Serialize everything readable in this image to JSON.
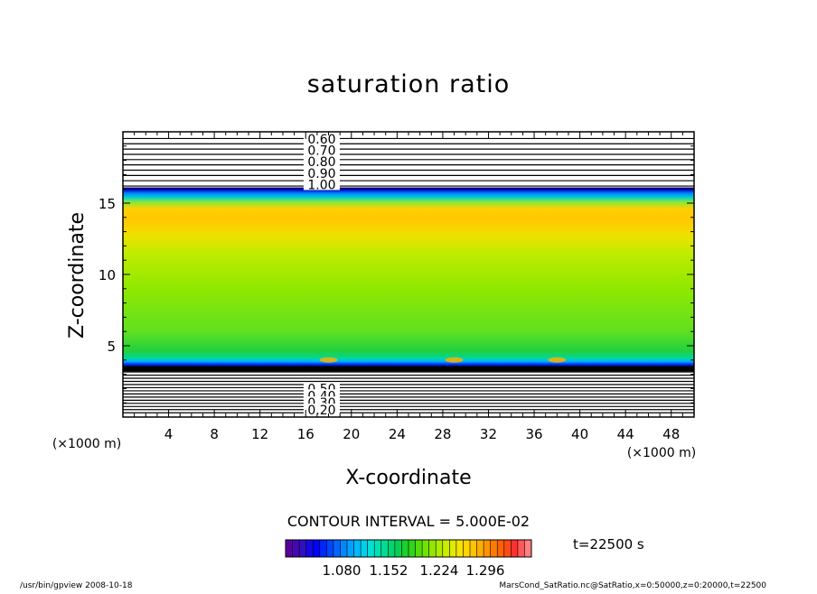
{
  "chart_data": {
    "type": "heatmap",
    "title": "saturation ratio",
    "xlabel": "X-coordinate",
    "ylabel": "Z-coordinate",
    "x_unit": "(×1000 m)",
    "y_unit": "(×1000 m)",
    "xlim": [
      0,
      50
    ],
    "ylim": [
      0,
      20
    ],
    "x_ticks": [
      4,
      8,
      12,
      16,
      20,
      24,
      28,
      32,
      36,
      40,
      44,
      48
    ],
    "y_ticks": [
      5,
      10,
      15
    ],
    "contour_interval_text": "CONTOUR INTERVAL = 5.000E-02",
    "time_text": "t=22500 s",
    "colorbar_ticks": [
      "1.080",
      "1.152",
      "1.224",
      "1.296"
    ],
    "colorbar_colors": [
      "#5a00a0",
      "#3010c0",
      "#0000ff",
      "#0040ff",
      "#0080ff",
      "#00b4ff",
      "#00e0e0",
      "#00e0a0",
      "#00d060",
      "#20d020",
      "#60e000",
      "#a0e800",
      "#d0f000",
      "#ffe000",
      "#ffc000",
      "#ff9000",
      "#ff6000",
      "#ff3030",
      "#ff8080"
    ],
    "upper_contour_labels": [
      "0.60",
      "0.70",
      "0.80",
      "0.90",
      "1.00"
    ],
    "upper_contour_z": [
      19.5,
      18.7,
      17.9,
      17.1,
      16.3
    ],
    "lower_contour_labels": [
      "0.50",
      "0.40",
      "0.30",
      "0.20"
    ],
    "lower_contour_z": [
      2.0,
      1.5,
      1.0,
      0.5
    ],
    "field_profile": [
      {
        "z": 3.5,
        "color": "#000010"
      },
      {
        "z": 3.7,
        "color": "#0030ff"
      },
      {
        "z": 3.9,
        "color": "#00b0ff"
      },
      {
        "z": 4.1,
        "color": "#00d8a0"
      },
      {
        "z": 4.6,
        "color": "#20d040"
      },
      {
        "z": 6.0,
        "color": "#60e020"
      },
      {
        "z": 9.0,
        "color": "#90e800"
      },
      {
        "z": 11.5,
        "color": "#c0ec00"
      },
      {
        "z": 12.8,
        "color": "#f0e000"
      },
      {
        "z": 13.8,
        "color": "#ffc800"
      },
      {
        "z": 14.6,
        "color": "#ffd000"
      },
      {
        "z": 15.1,
        "color": "#80e840"
      },
      {
        "z": 15.4,
        "color": "#00d0d0"
      },
      {
        "z": 15.7,
        "color": "#0080ff"
      },
      {
        "z": 15.95,
        "color": "#0000c0"
      },
      {
        "z": 16.1,
        "color": "#000040"
      }
    ]
  },
  "footer": {
    "left": "/usr/bin/gpview   2008-10-18",
    "right": "MarsCond_SatRatio.nc@SatRatio,x=0:50000,z=0:20000,t=22500"
  }
}
